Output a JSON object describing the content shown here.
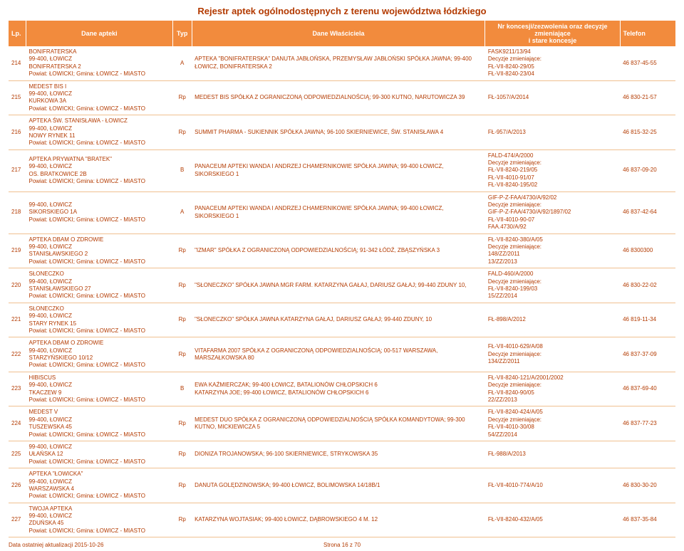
{
  "title": "Rejestr aptek ogólnodostępnych z terenu województwa łódzkiego",
  "columns": {
    "lp": "Lp.",
    "name": "Dane apteki",
    "typ": "Typ",
    "owner": "Dane Właściciela",
    "lic": "Nr koncesji/zezwolenia oraz decyzje zmieniające\ni stare koncesje",
    "tel": "Telefon"
  },
  "rows": [
    {
      "lp": "214",
      "name": "BONIFRATERSKA\n99-400, ŁOWICZ\nBONIFRATERSKA 2\nPowiat: ŁOWICKI; Gmina: ŁOWICZ - MIASTO",
      "typ": "A",
      "owner": "APTEKA \"BONIFRATERSKA\" DANUTA JABŁOŃSKA, PRZEMYSŁAW JABŁOŃSKI SPÓŁKA JAWNA; 99-400 ŁOWICZ, BONIFRATERSKA 2",
      "lic": "FASK9211/13/94\nDecyzje zmieniające:\nFŁ-VII-8240-29/05\nFŁ-VII-8240-23/04",
      "tel": "46 837-45-55"
    },
    {
      "lp": "215",
      "name": "MEDEST BIS I\n99-400, ŁOWICZ\nKURKOWA 3A\nPowiat: ŁOWICKI; Gmina: ŁOWICZ - MIASTO",
      "typ": "Rp",
      "owner": "MEDEST BIS SPÓŁKA Z OGRANICZONĄ ODPOWIEDZIALNOŚCIĄ; 99-300 KUTNO, NARUTOWICZA 39",
      "lic": "FŁ-1057/A/2014",
      "tel": "46 830-21-57"
    },
    {
      "lp": "216",
      "name": "APTEKA ŚW. STANISŁAWA - ŁOWICZ\n99-400, ŁOWICZ\nNOWY RYNEK 11\nPowiat: ŁOWICKI; Gmina: ŁOWICZ - MIASTO",
      "typ": "Rp",
      "owner": "SUMMIT PHARMA - SUKIENNIK SPÓŁKA JAWNA; 96-100 SKIERNIEWICE, ŚW. STANISŁAWA 4",
      "lic": "FŁ-957/A/2013",
      "tel": "46 815-32-25"
    },
    {
      "lp": "217",
      "name": "APTEKA PRYWATNA \"BRATEK\"\n99-400, ŁOWICZ\nOS. BRATKOWICE 2B\nPowiat: ŁOWICKI; Gmina: ŁOWICZ - MIASTO",
      "typ": "B",
      "owner": "PANACEUM APTEKI WANDA I ANDRZEJ CHAMERNIKOWIE SPÓŁKA JAWNA; 99-400 ŁOWICZ, SIKORSKIEGO 1",
      "lic": "FALD-474/A/2000\nDecyzje zmieniające:\nFŁ-VII-8240-219/05\nFŁ-VII-4010-91/07\nFŁ-VII-8240-195/02",
      "tel": "46 837-09-20"
    },
    {
      "lp": "218",
      "name": "99-400, ŁOWICZ\nSIKORSKIEGO 1A\nPowiat: ŁOWICKI; Gmina: ŁOWICZ - MIASTO",
      "typ": "A",
      "owner": "PANACEUM APTEKI WANDA I ANDRZEJ CHAMERNIKOWIE SPÓŁKA JAWNA; 99-400 ŁOWICZ, SIKORSKIEGO 1",
      "lic": "GIF-P-Z-FAA/4730/A/92/02\nDecyzje zmieniające:\nGIF-P-Z-FAA/4730/A/92/1897/02\nFŁ-VII-4010-90-07\nFAA.4730/A/92",
      "tel": "46 837-42-64"
    },
    {
      "lp": "219",
      "name": "APTEKA DBAM O ZDROWIE\n99-400, ŁOWICZ\nSTANISŁAWSKIEGO 2\nPowiat: ŁOWICKI; Gmina: ŁOWICZ - MIASTO",
      "typ": "Rp",
      "owner": "\"IZMAR\" SPÓŁKA Z OGRANICZONĄ ODPOWIEDZIALNOŚCIĄ; 91-342 ŁÓDŹ, ZBĄSZYŃSKA 3",
      "lic": "FŁ-VII-8240-380/A/05\nDecyzje zmieniające:\n148/ZZ/2011\n13/ZZ/2013",
      "tel": "46 8300300"
    },
    {
      "lp": "220",
      "name": "SŁONECZKO\n99-400, ŁOWICZ\nSTANISŁAWSKIEGO 27\nPowiat: ŁOWICKI; Gmina: ŁOWICZ - MIASTO",
      "typ": "Rp",
      "owner": "\"SŁONECZKO\" SPÓŁKA JAWNA MGR FARM. KATARZYNA GAŁAJ, DARIUSZ GAŁAJ; 99-440 ZDUNY 10,",
      "lic": "FALD-460/A/2000\nDecyzje zmieniające:\nFŁ-VII-8240-199/03\n15/ZZ/2014",
      "tel": "46 830-22-02"
    },
    {
      "lp": "221",
      "name": "SŁONECZKO\n99-400, ŁOWICZ\nSTARY RYNEK 15\nPowiat: ŁOWICKI; Gmina: ŁOWICZ - MIASTO",
      "typ": "Rp",
      "owner": "\"SŁONECZKO\" SPÓŁKA JAWNA KATARZYNA GAŁAJ, DARIUSZ GAŁAJ; 99-440 ZDUNY, 10",
      "lic": "FŁ-898/A/2012",
      "tel": "46 819-11-34"
    },
    {
      "lp": "222",
      "name": "APTEKA DBAM O ZDROWIE\n99-400, ŁOWICZ\nSTARZYŃSKIEGO 10/12\nPowiat: ŁOWICKI; Gmina: ŁOWICZ - MIASTO",
      "typ": "Rp",
      "owner": "VITAFARMA 2007 SPÓŁKA Z OGRANICZONĄ ODPOWIEDZIALNOŚCIĄ; 00-517 WARSZAWA, MARSZAŁKOWSKA 80",
      "lic": "FŁ-VII-4010-629/A/08\nDecyzje zmieniające:\n134/ZZ/2011",
      "tel": "46 837-37-09"
    },
    {
      "lp": "223",
      "name": "HIBISCUS\n99-400, ŁOWICZ\nTKACZEW 9\nPowiat: ŁOWICKI; Gmina: ŁOWICZ - MIASTO",
      "typ": "B",
      "owner": "EWA KAŹMIERCZAK; 99-400 ŁOWICZ, BATALIONÓW CHŁOPSKICH 6\nKATARZYNA JOE; 99-400 ŁOWICZ, BATALIONÓW CHŁOPSKICH 6",
      "lic": "FŁ-VII-8240-121/A/2001/2002\nDecyzje zmieniające:\nFŁ-VII-8240-90/05\n22/ZZ/2013",
      "tel": "46 837-69-40"
    },
    {
      "lp": "224",
      "name": "MEDEST V\n99-400, ŁOWICZ\nTUSZEWSKA 45\nPowiat: ŁOWICKI; Gmina: ŁOWICZ - MIASTO",
      "typ": "Rp",
      "owner": "MEDEST DUO SPÓŁKA Z OGRANICZONĄ ODPOWIEDZIALNOŚCIĄ SPÓŁKA KOMANDYTOWA; 99-300 KUTNO, MICKIEWICZA 5",
      "lic": "FŁ-VII-8240-424/A/05\nDecyzje zmieniające:\nFŁ-VII-4010-30/08\n54/ZZ/2014",
      "tel": "46 837-77-23"
    },
    {
      "lp": "225",
      "name": "99-400, ŁOWICZ\nUŁAŃSKA 12\nPowiat: ŁOWICKI; Gmina: ŁOWICZ - MIASTO",
      "typ": "Rp",
      "owner": "DIONIZA TROJANOWSKA; 96-100 SKIERNIEWICE, STRYKOWSKA 35",
      "lic": "FŁ-988/A/2013",
      "tel": ""
    },
    {
      "lp": "226",
      "name": "APTEKA \"ŁOWICKA\"\n99-400, ŁOWICZ\nWARSZAWSKA 4\nPowiat: ŁOWICKI; Gmina: ŁOWICZ - MIASTO",
      "typ": "Rp",
      "owner": "DANUTA GOLĘDZINOWSKA; 99-400 ŁOWICZ, BOLIMOWSKA 14/18B/1",
      "lic": "FŁ-VII-4010-774/A/10",
      "tel": "46 830-30-20"
    },
    {
      "lp": "227",
      "name": "TWOJA APTEKA\n99-400, ŁOWICZ\nZDUŃSKA 45\nPowiat: ŁOWICKI; Gmina: ŁOWICZ - MIASTO",
      "typ": "Rp",
      "owner": "KATARZYNA WOJTASIAK; 99-400 ŁOWICZ, DĄBROWSKIEGO 4 M. 12",
      "lic": "FŁ-VII-8240-432/A/05",
      "tel": "46 837-35-84"
    }
  ],
  "footer": {
    "left": "Data ostatniej aktualizacji 2015-10-26",
    "center": "Strona 16 z 70",
    "right": ""
  }
}
